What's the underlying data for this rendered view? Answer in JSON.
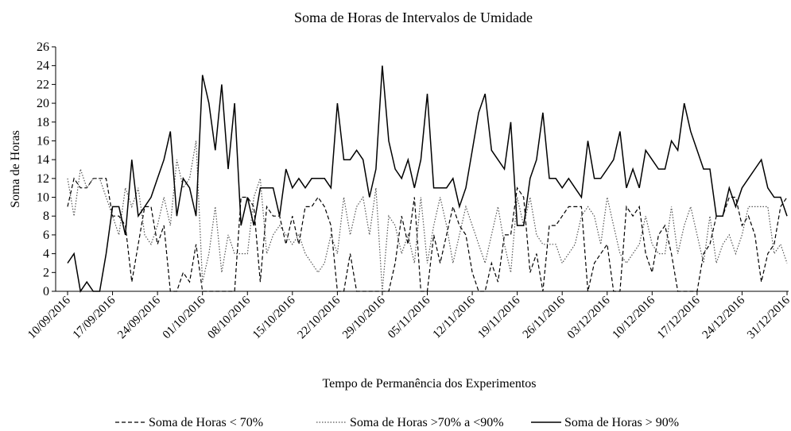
{
  "chart_data": {
    "type": "line",
    "title": "Soma de Horas de Intervalos  de Umidade",
    "x_label": "Tempo de Permanência dos Experimentos",
    "y_label": "Soma de Horas",
    "categories": [
      "10/09/2016",
      null,
      null,
      null,
      null,
      null,
      null,
      "17/09/2016",
      null,
      null,
      null,
      null,
      null,
      null,
      "24/09/2016",
      null,
      null,
      null,
      null,
      null,
      null,
      "01/10/2016",
      null,
      null,
      null,
      null,
      null,
      null,
      "08/10/2016",
      null,
      null,
      null,
      null,
      null,
      null,
      "15/10/2016",
      null,
      null,
      null,
      null,
      null,
      null,
      "22/10/2016",
      null,
      null,
      null,
      null,
      null,
      null,
      "29/10/2016",
      null,
      null,
      null,
      null,
      null,
      null,
      "05/11/2016",
      null,
      null,
      null,
      null,
      null,
      null,
      "12/11/2016",
      null,
      null,
      null,
      null,
      null,
      null,
      "19/11/2016",
      null,
      null,
      null,
      null,
      null,
      null,
      "26/11/2016",
      null,
      null,
      null,
      null,
      null,
      null,
      "03/12/2016",
      null,
      null,
      null,
      null,
      null,
      null,
      "10/12/2016",
      null,
      null,
      null,
      null,
      null,
      null,
      "17/12/2016",
      null,
      null,
      null,
      null,
      null,
      null,
      "24/12/2016",
      null,
      null,
      null,
      null,
      null,
      null,
      "31/12/2016"
    ],
    "series": [
      {
        "name": "Soma de Horas < 70%",
        "color": "#000000",
        "dash": "dashed",
        "values": [
          9,
          12,
          11,
          11,
          12,
          12,
          12,
          8,
          8,
          7,
          1,
          5,
          9,
          9,
          5,
          7,
          0,
          0,
          2,
          1,
          5,
          0,
          0,
          0,
          0,
          0,
          0,
          10,
          10,
          9,
          1,
          9,
          8,
          8,
          5,
          8,
          5,
          9,
          9,
          10,
          9,
          7,
          0,
          0,
          4,
          0,
          0,
          0,
          0,
          0,
          0,
          3,
          8,
          5,
          10,
          0,
          0,
          6,
          3,
          6,
          9,
          7,
          6,
          2,
          0,
          0,
          3,
          1,
          6,
          6,
          11,
          10,
          2,
          4,
          0,
          7,
          7,
          8,
          9,
          9,
          9,
          0,
          3,
          4,
          5,
          0,
          0,
          9,
          8,
          9,
          4,
          2,
          6,
          7,
          4,
          0,
          0,
          0,
          0,
          4,
          5,
          8,
          8,
          10,
          10,
          7,
          8,
          6,
          1,
          4,
          5,
          9,
          10
        ]
      },
      {
        "name": "Soma de Horas >70% a <90%",
        "color": "#555555",
        "dash": "dotted",
        "values": [
          12,
          8,
          13,
          11,
          12,
          12,
          10,
          8,
          6,
          11,
          9,
          11,
          6,
          5,
          7,
          10,
          7,
          14,
          11,
          12,
          16,
          1,
          4,
          9,
          2,
          6,
          4,
          4,
          4,
          10,
          12,
          4,
          6,
          7,
          6,
          5,
          6,
          4,
          3,
          2,
          3,
          6,
          4,
          10,
          6,
          9,
          10,
          6,
          11,
          0,
          8,
          7,
          4,
          6,
          3,
          10,
          3,
          7,
          10,
          7,
          3,
          6,
          9,
          7,
          5,
          3,
          6,
          9,
          5,
          2,
          10,
          7,
          10,
          6,
          5,
          5,
          5,
          3,
          4,
          5,
          8,
          9,
          8,
          5,
          10,
          7,
          4,
          3,
          4,
          5,
          8,
          5,
          4,
          4,
          9,
          4,
          7,
          9,
          6,
          3,
          8,
          3,
          5,
          6,
          4,
          6,
          9,
          9,
          9,
          9,
          4,
          5,
          3
        ]
      },
      {
        "name": "Soma de Horas > 90%",
        "color": "#000000",
        "dash": "solid",
        "values": [
          3,
          4,
          0,
          1,
          0,
          0,
          4,
          9,
          9,
          6,
          14,
          8,
          9,
          10,
          12,
          14,
          17,
          8,
          12,
          11,
          8,
          23,
          20,
          15,
          22,
          13,
          20,
          7,
          10,
          7,
          11,
          11,
          11,
          8,
          13,
          11,
          12,
          11,
          12,
          12,
          12,
          11,
          20,
          14,
          14,
          15,
          14,
          10,
          13,
          24,
          16,
          13,
          12,
          14,
          11,
          14,
          21,
          11,
          11,
          11,
          12,
          9,
          11,
          15,
          19,
          21,
          15,
          14,
          13,
          18,
          7,
          7,
          12,
          14,
          19,
          12,
          12,
          11,
          12,
          11,
          10,
          16,
          12,
          12,
          13,
          14,
          17,
          11,
          13,
          11,
          15,
          14,
          13,
          13,
          16,
          15,
          20,
          17,
          15,
          13,
          13,
          8,
          8,
          11,
          9,
          11,
          12,
          13,
          14,
          11,
          10,
          10,
          8
        ]
      }
    ],
    "ylim": [
      0,
      26
    ],
    "yticks": [
      0,
      2,
      4,
      6,
      8,
      10,
      12,
      14,
      16,
      18,
      20,
      22,
      24,
      26
    ],
    "grid": false,
    "legend": "bottom"
  }
}
